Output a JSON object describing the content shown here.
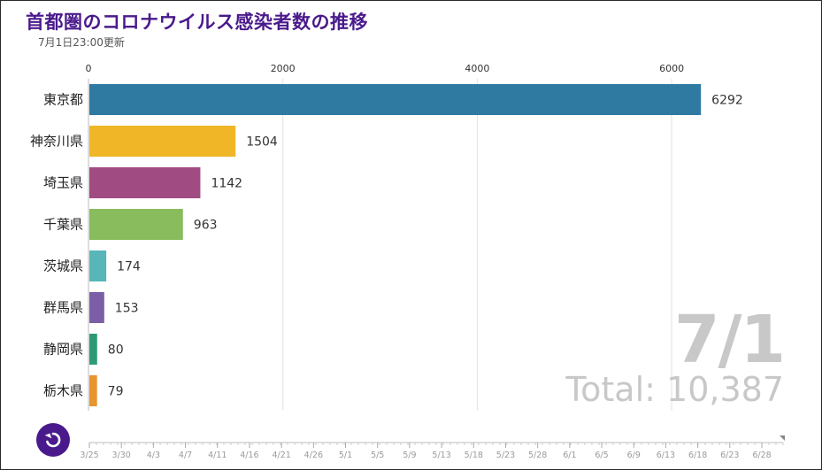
{
  "header": {
    "title": "首都圏のコロナウイルス感染者数の推移",
    "updated": "7月1日23:00更新"
  },
  "overlay": {
    "date": "7/1",
    "total": "Total: 10,387"
  },
  "replay_button": {
    "icon": "replay-icon",
    "color": "#4a1a8c"
  },
  "timeline": {
    "labels": [
      "3/25",
      "3/30",
      "4/3",
      "4/7",
      "4/11",
      "4/16",
      "4/21",
      "4/26",
      "5/1",
      "5/5",
      "5/9",
      "5/13",
      "5/18",
      "5/23",
      "5/28",
      "6/1",
      "6/5",
      "6/9",
      "6/13",
      "6/18",
      "6/23",
      "6/28"
    ],
    "current": "7/1"
  },
  "chart_data": {
    "type": "bar",
    "orientation": "horizontal",
    "categories": [
      "東京都",
      "神奈川県",
      "埼玉県",
      "千葉県",
      "茨城県",
      "群馬県",
      "静岡県",
      "栃木県"
    ],
    "values": [
      6292,
      1504,
      1142,
      963,
      174,
      153,
      80,
      79
    ],
    "colors": [
      "#2f7aa1",
      "#f0b627",
      "#a04c82",
      "#88bc5d",
      "#58b6b8",
      "#7b5ea6",
      "#2e9a73",
      "#e8952e"
    ],
    "title": "首都圏のコロナウイルス感染者数の推移",
    "xlim": [
      0,
      6600
    ],
    "xticks": [
      0,
      2000,
      4000,
      6000
    ],
    "grid": true,
    "legend": "none"
  }
}
